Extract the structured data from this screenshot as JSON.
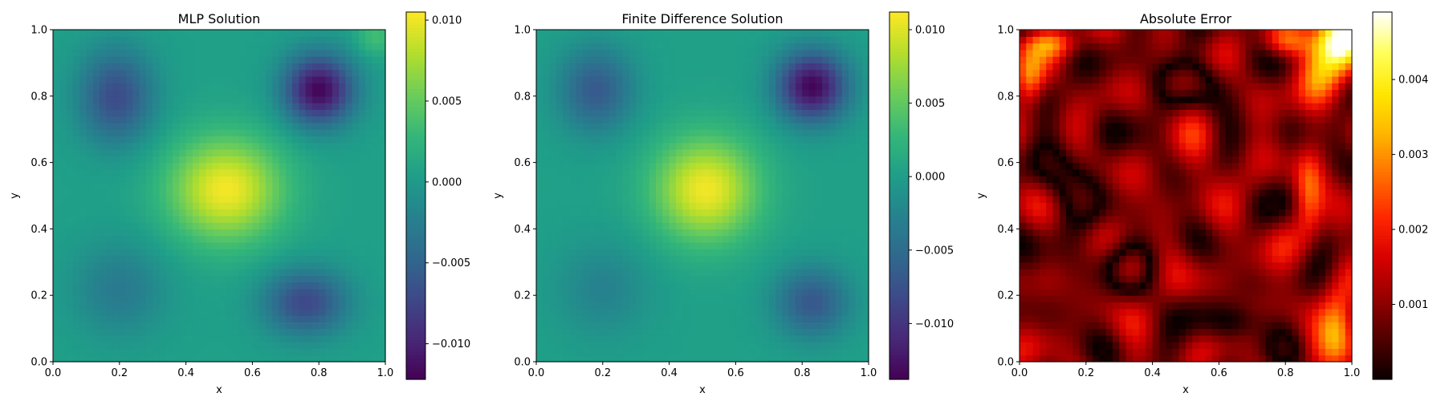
{
  "chart_data": [
    {
      "type": "heatmap",
      "title": "MLP Solution",
      "xlabel": "x",
      "ylabel": "y",
      "xlim": [
        0,
        1
      ],
      "ylim": [
        0,
        1
      ],
      "xticks": [
        "0.0",
        "0.2",
        "0.4",
        "0.6",
        "0.8",
        "1.0"
      ],
      "yticks": [
        "0.0",
        "0.2",
        "0.4",
        "0.6",
        "0.8",
        "1.0"
      ],
      "colormap": "viridis",
      "colorbar": {
        "range": [
          -0.0122,
          0.0105
        ],
        "ticks": [
          -0.01,
          -0.005,
          0.0,
          0.005,
          0.01
        ],
        "tick_labels": [
          "−0.010",
          "−0.005",
          "0.000",
          "0.005",
          "0.010"
        ]
      },
      "grid": false,
      "field": {
        "base": 0.0006,
        "features": [
          {
            "x": 0.52,
            "y": 0.52,
            "amplitude": 0.0096,
            "sx": 0.12,
            "sy": 0.11
          },
          {
            "x": 0.8,
            "y": 0.82,
            "amplitude": -0.0125,
            "sx": 0.075,
            "sy": 0.075
          },
          {
            "x": 0.19,
            "y": 0.8,
            "amplitude": -0.0075,
            "sx": 0.08,
            "sy": 0.1
          },
          {
            "x": 0.76,
            "y": 0.18,
            "amplitude": -0.0078,
            "sx": 0.09,
            "sy": 0.07
          },
          {
            "x": 0.2,
            "y": 0.22,
            "amplitude": -0.0035,
            "sx": 0.1,
            "sy": 0.1
          },
          {
            "x": 0.97,
            "y": 0.98,
            "amplitude": 0.003,
            "sx": 0.04,
            "sy": 0.04
          }
        ]
      }
    },
    {
      "type": "heatmap",
      "title": "Finite Difference Solution",
      "xlabel": "x",
      "ylabel": "y",
      "xlim": [
        0,
        1
      ],
      "ylim": [
        0,
        1
      ],
      "xticks": [
        "0.0",
        "0.2",
        "0.4",
        "0.6",
        "0.8",
        "1.0"
      ],
      "yticks": [
        "0.0",
        "0.2",
        "0.4",
        "0.6",
        "0.8",
        "1.0"
      ],
      "colormap": "viridis",
      "colorbar": {
        "range": [
          -0.0138,
          0.0112
        ],
        "ticks": [
          -0.01,
          -0.005,
          0.0,
          0.005,
          0.01
        ],
        "tick_labels": [
          "−0.010",
          "−0.005",
          "0.000",
          "0.005",
          "0.010"
        ]
      },
      "grid": false,
      "field": {
        "base": 0.0003,
        "features": [
          {
            "x": 0.51,
            "y": 0.52,
            "amplitude": 0.0105,
            "sx": 0.11,
            "sy": 0.11
          },
          {
            "x": 0.83,
            "y": 0.83,
            "amplitude": -0.0138,
            "sx": 0.075,
            "sy": 0.075
          },
          {
            "x": 0.18,
            "y": 0.82,
            "amplitude": -0.007,
            "sx": 0.08,
            "sy": 0.09
          },
          {
            "x": 0.83,
            "y": 0.18,
            "amplitude": -0.0072,
            "sx": 0.08,
            "sy": 0.075
          },
          {
            "x": 0.2,
            "y": 0.22,
            "amplitude": -0.003,
            "sx": 0.1,
            "sy": 0.1
          }
        ]
      }
    },
    {
      "type": "heatmap",
      "title": "Absolute Error",
      "xlabel": "x",
      "ylabel": "y",
      "xlim": [
        0,
        1
      ],
      "ylim": [
        0,
        1
      ],
      "xticks": [
        "0.0",
        "0.2",
        "0.4",
        "0.6",
        "0.8",
        "1.0"
      ],
      "yticks": [
        "0.0",
        "0.2",
        "0.4",
        "0.6",
        "0.8",
        "1.0"
      ],
      "colormap": "hot",
      "colorbar": {
        "range": [
          0.0,
          0.0049
        ],
        "ticks": [
          0.001,
          0.002,
          0.003,
          0.004
        ],
        "tick_labels": [
          "0.001",
          "0.002",
          "0.003",
          "0.004"
        ]
      },
      "grid": false,
      "field": {
        "base": 0.0009,
        "abs": true,
        "features": [
          {
            "x": 0.97,
            "y": 0.98,
            "amplitude": 0.004,
            "sx": 0.06,
            "sy": 0.06
          },
          {
            "x": 0.9,
            "y": 0.86,
            "amplitude": 0.0018,
            "sx": 0.05,
            "sy": 0.07
          },
          {
            "x": 0.8,
            "y": 0.96,
            "amplitude": 0.0015,
            "sx": 0.05,
            "sy": 0.03
          },
          {
            "x": 0.87,
            "y": 0.5,
            "amplitude": 0.0016,
            "sx": 0.03,
            "sy": 0.09
          },
          {
            "x": 0.96,
            "y": 0.1,
            "amplitude": 0.0022,
            "sx": 0.04,
            "sy": 0.09
          },
          {
            "x": 0.03,
            "y": 0.85,
            "amplitude": 0.0016,
            "sx": 0.03,
            "sy": 0.06
          },
          {
            "x": 0.1,
            "y": 0.96,
            "amplitude": 0.0016,
            "sx": 0.06,
            "sy": 0.03
          },
          {
            "x": 0.55,
            "y": 0.6,
            "amplitude": 0.0006,
            "sx": 0.06,
            "sy": 0.06
          },
          {
            "x": 0.7,
            "y": 0.3,
            "amplitude": 0.0005,
            "sx": 0.05,
            "sy": 0.05
          },
          {
            "x": 0.3,
            "y": 0.3,
            "amplitude": -0.0011,
            "sx": 0.08,
            "sy": 0.05
          },
          {
            "x": 0.5,
            "y": 0.85,
            "amplitude": -0.0012,
            "sx": 0.09,
            "sy": 0.05
          },
          {
            "x": 0.15,
            "y": 0.55,
            "amplitude": -0.0011,
            "sx": 0.06,
            "sy": 0.08
          },
          {
            "x": 0.65,
            "y": 0.12,
            "amplitude": -0.001,
            "sx": 0.07,
            "sy": 0.04
          }
        ],
        "waves": [
          {
            "kx": 7.0,
            "ky": 5.0,
            "amplitude": 0.0006,
            "phase": 0.3
          },
          {
            "kx": 4.0,
            "ky": 9.0,
            "amplitude": 0.0005,
            "phase": 1.1
          },
          {
            "kx": 11.0,
            "ky": 3.0,
            "amplitude": 0.0004,
            "phase": 2.0
          }
        ]
      }
    }
  ]
}
